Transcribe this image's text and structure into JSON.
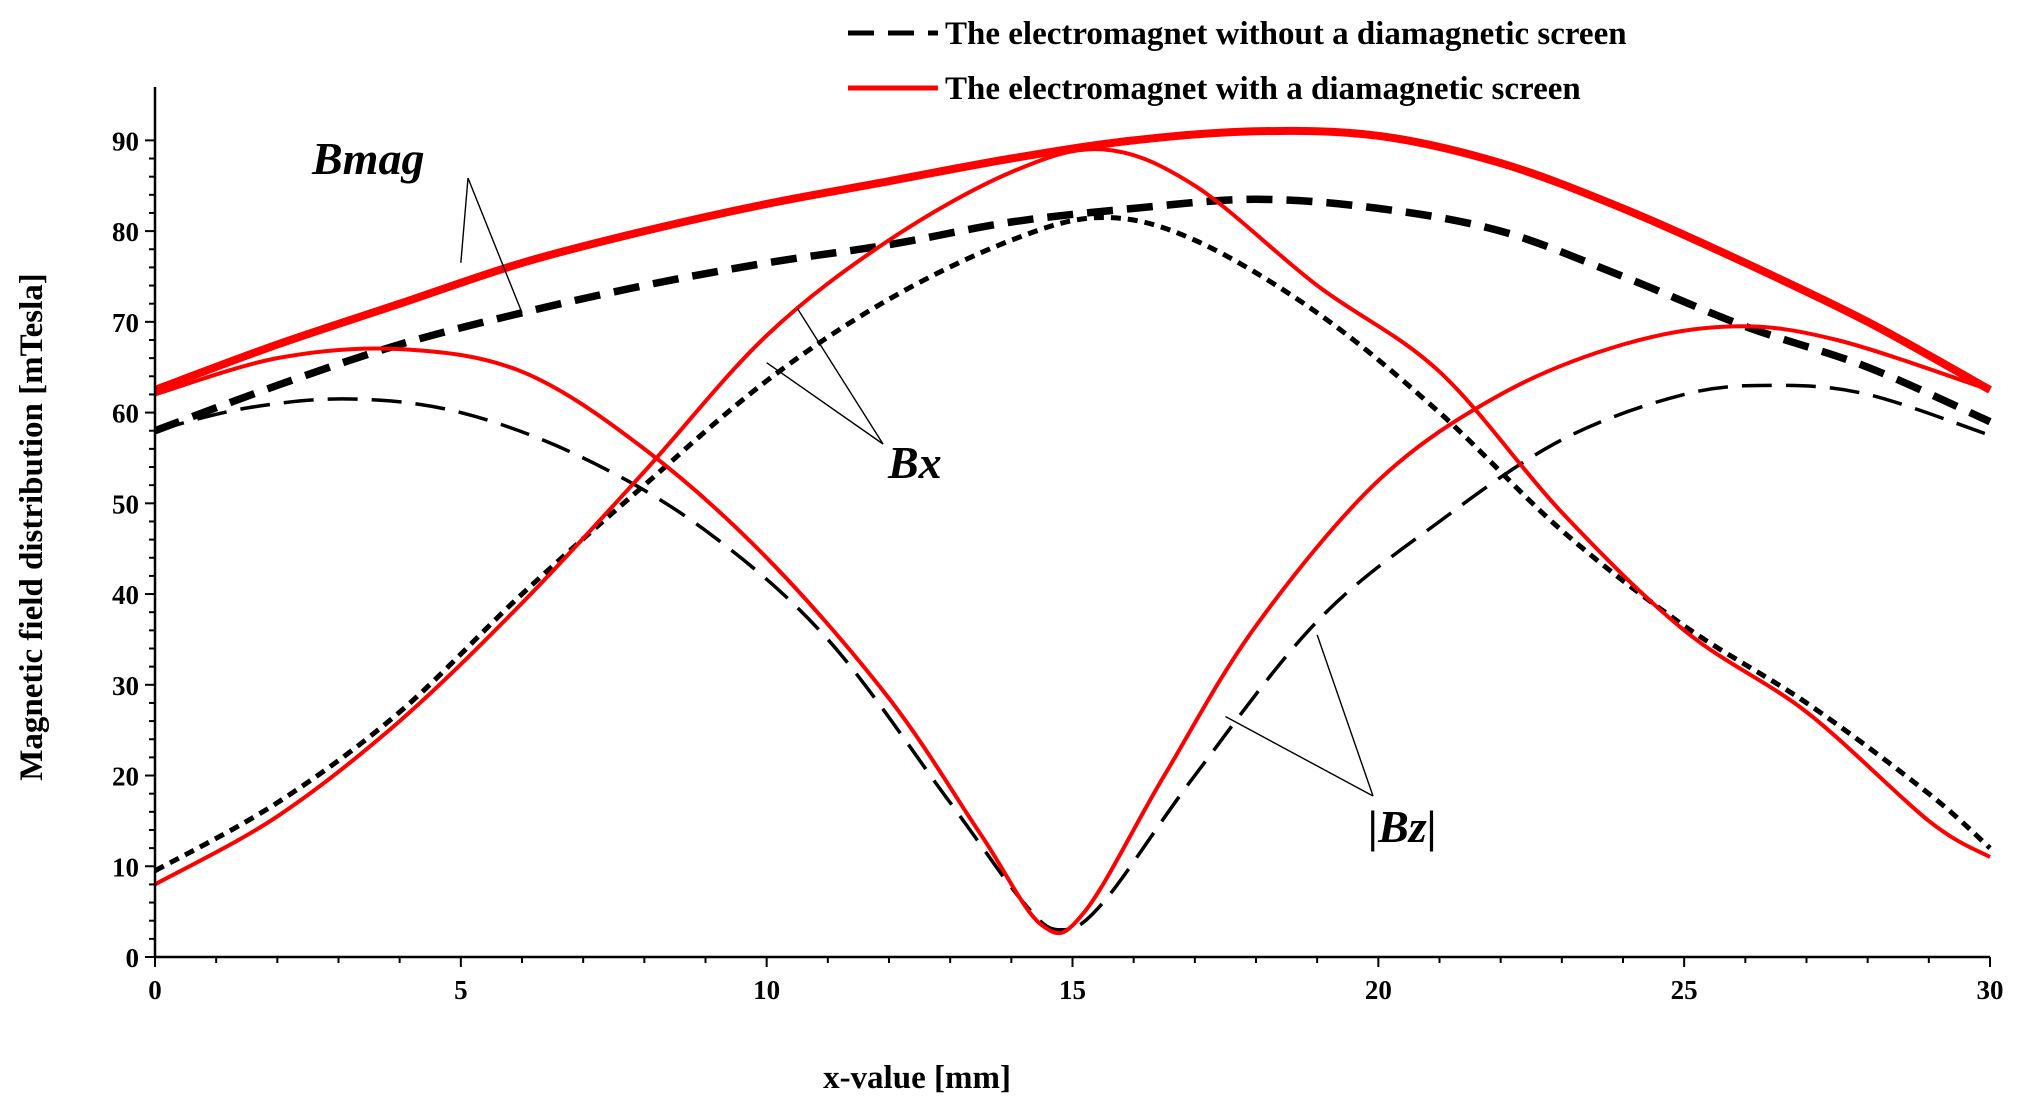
{
  "chart_data": {
    "type": "line",
    "title": "",
    "xlabel": "x-value [mm]",
    "ylabel": "Magnetic field distribution [mTesla]",
    "xlim": [
      0,
      30
    ],
    "ylim": [
      0,
      95
    ],
    "xticks": [
      0,
      5,
      10,
      15,
      20,
      25,
      30
    ],
    "yticks": [
      0,
      10,
      20,
      30,
      40,
      50,
      60,
      70,
      80,
      90
    ],
    "grid": false,
    "legend_position": "top-right",
    "legend": [
      {
        "label": "The electromagnet without a diamagnetic screen",
        "style": "dashed",
        "color": "#000000"
      },
      {
        "label": "The electromagnet with a diamagnetic screen",
        "style": "solid",
        "color": "#ff0000"
      }
    ],
    "series": [
      {
        "name": "Bmag without screen",
        "color": "#000000",
        "style": "dashed-heavy",
        "points": [
          [
            0,
            58
          ],
          [
            2,
            63
          ],
          [
            4,
            67.5
          ],
          [
            6,
            71
          ],
          [
            8,
            74
          ],
          [
            10,
            76.5
          ],
          [
            12,
            78.5
          ],
          [
            14,
            81
          ],
          [
            16,
            82.5
          ],
          [
            18,
            83.5
          ],
          [
            20,
            82.5
          ],
          [
            22,
            80
          ],
          [
            24,
            75
          ],
          [
            26,
            69.5
          ],
          [
            28,
            65
          ],
          [
            30,
            59
          ]
        ]
      },
      {
        "name": "Bmag with screen",
        "color": "#ff0000",
        "style": "solid-heavy",
        "points": [
          [
            0,
            62.5
          ],
          [
            2,
            67.5
          ],
          [
            4,
            72
          ],
          [
            6,
            76.5
          ],
          [
            8,
            80
          ],
          [
            10,
            83
          ],
          [
            12,
            85.5
          ],
          [
            14,
            88
          ],
          [
            16,
            90
          ],
          [
            18,
            91
          ],
          [
            20,
            90.5
          ],
          [
            22,
            87.5
          ],
          [
            24,
            82.5
          ],
          [
            26,
            76.5
          ],
          [
            28,
            70
          ],
          [
            30,
            62.5
          ]
        ]
      },
      {
        "name": "Bx without screen",
        "color": "#000000",
        "style": "dotted",
        "points": [
          [
            0,
            9.5
          ],
          [
            2,
            17
          ],
          [
            4,
            27
          ],
          [
            6,
            40
          ],
          [
            8,
            52
          ],
          [
            10,
            63.5
          ],
          [
            12,
            72.5
          ],
          [
            14,
            79
          ],
          [
            15.5,
            81.5
          ],
          [
            17,
            79
          ],
          [
            19,
            71
          ],
          [
            21,
            60
          ],
          [
            23,
            47
          ],
          [
            25,
            36.5
          ],
          [
            27,
            28
          ],
          [
            29,
            18
          ],
          [
            30,
            12
          ]
        ]
      },
      {
        "name": "Bx with screen",
        "color": "#ff0000",
        "style": "solid",
        "points": [
          [
            0,
            8
          ],
          [
            2,
            15.5
          ],
          [
            4,
            26
          ],
          [
            6,
            39
          ],
          [
            8,
            53.5
          ],
          [
            10,
            68.5
          ],
          [
            12,
            79
          ],
          [
            14,
            86.5
          ],
          [
            15.5,
            89
          ],
          [
            17,
            85
          ],
          [
            19,
            74
          ],
          [
            21,
            64.5
          ],
          [
            23,
            49
          ],
          [
            25,
            36
          ],
          [
            27,
            27
          ],
          [
            29,
            15
          ],
          [
            30,
            11
          ]
        ]
      },
      {
        "name": "|Bz| without screen",
        "color": "#000000",
        "style": "dashed",
        "points": [
          [
            0,
            58
          ],
          [
            1.5,
            60.5
          ],
          [
            3.2,
            61.5
          ],
          [
            5,
            60
          ],
          [
            7,
            55
          ],
          [
            9,
            47
          ],
          [
            11,
            35
          ],
          [
            13,
            17
          ],
          [
            14.2,
            6
          ],
          [
            14.8,
            3
          ],
          [
            15.5,
            6
          ],
          [
            17,
            20
          ],
          [
            19,
            37
          ],
          [
            21,
            48
          ],
          [
            23,
            57
          ],
          [
            25,
            62
          ],
          [
            26.5,
            63
          ],
          [
            28,
            62
          ],
          [
            30,
            57.5
          ]
        ]
      },
      {
        "name": "|Bz| with screen",
        "color": "#ff0000",
        "style": "solid",
        "points": [
          [
            0,
            62
          ],
          [
            2,
            66
          ],
          [
            4,
            67
          ],
          [
            6,
            64.5
          ],
          [
            8,
            56
          ],
          [
            10,
            44
          ],
          [
            12,
            28.5
          ],
          [
            13.5,
            13.5
          ],
          [
            14.5,
            3.5
          ],
          [
            15.2,
            5
          ],
          [
            16.5,
            20
          ],
          [
            18,
            36.5
          ],
          [
            20,
            52.5
          ],
          [
            22,
            62
          ],
          [
            24,
            67.5
          ],
          [
            25.8,
            69.5
          ],
          [
            27.5,
            68
          ],
          [
            30,
            62.5
          ]
        ]
      }
    ],
    "annotations": [
      {
        "text": "Bmag",
        "targets": [
          [
            5,
            76.5
          ],
          [
            6,
            71
          ]
        ]
      },
      {
        "text": "Bx",
        "targets": [
          [
            10.5,
            71.5
          ],
          [
            10,
            65.5
          ]
        ]
      },
      {
        "text": "|Bz|",
        "targets": [
          [
            19,
            35.5
          ],
          [
            17.5,
            26.5
          ]
        ]
      }
    ]
  }
}
